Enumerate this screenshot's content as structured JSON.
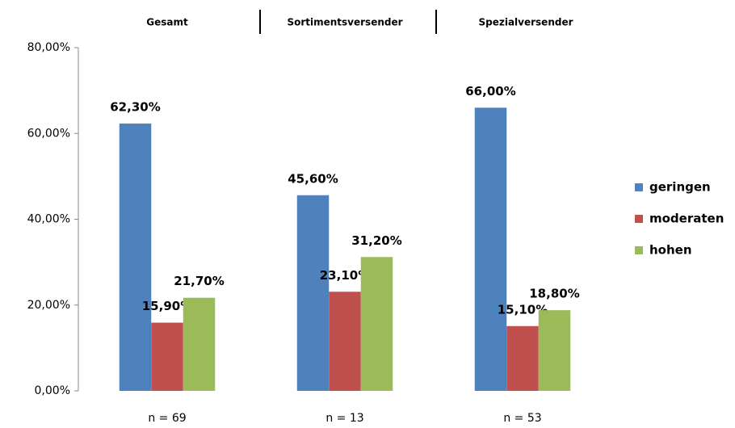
{
  "chart_data": {
    "type": "bar",
    "group_titles": [
      "Gesamt",
      "Sortimentsversender",
      "Spezialversender"
    ],
    "categories": [
      "n = 69",
      "n = 13",
      "n = 53"
    ],
    "series": [
      {
        "name": "geringen",
        "color": "#4f81bd",
        "values": [
          62.3,
          45.6,
          66.0
        ],
        "value_labels": [
          "62,30%",
          "45,60%",
          "66,00%"
        ]
      },
      {
        "name": "moderaten",
        "color": "#c0504d",
        "values": [
          15.9,
          23.1,
          15.1
        ],
        "value_labels": [
          "15,90%",
          "23,10%",
          "15,10%"
        ]
      },
      {
        "name": "hohen",
        "color": "#9bbb59",
        "values": [
          21.7,
          31.2,
          18.8
        ],
        "value_labels": [
          "21,70%",
          "31,20%",
          "18,80%"
        ]
      }
    ],
    "ylim": [
      0,
      80
    ],
    "yticks": [
      {
        "value": 0,
        "label": "0,00%"
      },
      {
        "value": 20,
        "label": "20,00%"
      },
      {
        "value": 40,
        "label": "40,00%"
      },
      {
        "value": 60,
        "label": "60,00%"
      },
      {
        "value": 80,
        "label": "80,00%"
      }
    ],
    "legend": "right"
  }
}
